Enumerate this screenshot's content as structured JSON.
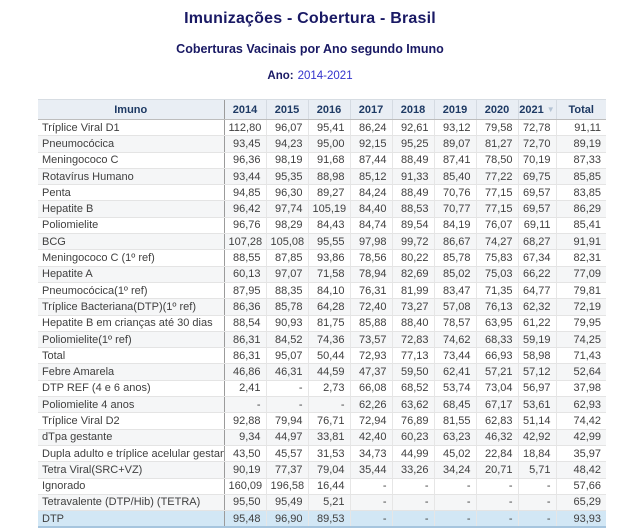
{
  "header": {
    "title": "Imunizações - Cobertura - Brasil",
    "subtitle": "Coberturas Vacinais por Ano segundo Imuno",
    "period_label": "Ano:",
    "period_value": "2014-2021"
  },
  "table_meta": {
    "sorted_column": "2021",
    "sort_direction": "desc",
    "sort_icon": "▼",
    "highlighted_row": "DTP"
  },
  "colors": {
    "title_navy": "#191964",
    "period_value_blue": "#3333cc",
    "header_bg": "#e9eef4",
    "header_text": "#1e3a64",
    "row_stripe": "#f5f6f7",
    "highlight_row_bg": "#d2e7f5",
    "table_bottom_border": "#a6c5de"
  },
  "chart_data": {
    "type": "table",
    "title": "Imunizações - Cobertura - Brasil",
    "subtitle": "Coberturas Vacinais por Ano segundo Imuno",
    "period": "Ano: 2014-2021",
    "columns": [
      "Imuno",
      "2014",
      "2015",
      "2016",
      "2017",
      "2018",
      "2019",
      "2020",
      "2021",
      "Total"
    ],
    "rows": [
      {
        "imuno": "Tríplice Viral D1",
        "values": [
          "112,80",
          "96,07",
          "95,41",
          "86,24",
          "92,61",
          "93,12",
          "79,58",
          "72,78",
          "91,11"
        ]
      },
      {
        "imuno": "Pneumocócica",
        "values": [
          "93,45",
          "94,23",
          "95,00",
          "92,15",
          "95,25",
          "89,07",
          "81,27",
          "72,70",
          "89,19"
        ]
      },
      {
        "imuno": "Meningococo C",
        "values": [
          "96,36",
          "98,19",
          "91,68",
          "87,44",
          "88,49",
          "87,41",
          "78,50",
          "70,19",
          "87,33"
        ]
      },
      {
        "imuno": "Rotavírus Humano",
        "values": [
          "93,44",
          "95,35",
          "88,98",
          "85,12",
          "91,33",
          "85,40",
          "77,22",
          "69,75",
          "85,85"
        ]
      },
      {
        "imuno": "Penta",
        "values": [
          "94,85",
          "96,30",
          "89,27",
          "84,24",
          "88,49",
          "70,76",
          "77,15",
          "69,57",
          "83,85"
        ]
      },
      {
        "imuno": "Hepatite B",
        "values": [
          "96,42",
          "97,74",
          "105,19",
          "84,40",
          "88,53",
          "70,77",
          "77,15",
          "69,57",
          "86,29"
        ]
      },
      {
        "imuno": "Poliomielite",
        "values": [
          "96,76",
          "98,29",
          "84,43",
          "84,74",
          "89,54",
          "84,19",
          "76,07",
          "69,11",
          "85,41"
        ]
      },
      {
        "imuno": "BCG",
        "values": [
          "107,28",
          "105,08",
          "95,55",
          "97,98",
          "99,72",
          "86,67",
          "74,27",
          "68,27",
          "91,91"
        ]
      },
      {
        "imuno": "Meningococo C (1º ref)",
        "values": [
          "88,55",
          "87,85",
          "93,86",
          "78,56",
          "80,22",
          "85,78",
          "75,83",
          "67,34",
          "82,31"
        ]
      },
      {
        "imuno": "Hepatite A",
        "values": [
          "60,13",
          "97,07",
          "71,58",
          "78,94",
          "82,69",
          "85,02",
          "75,03",
          "66,22",
          "77,09"
        ]
      },
      {
        "imuno": "Pneumocócica(1º ref)",
        "values": [
          "87,95",
          "88,35",
          "84,10",
          "76,31",
          "81,99",
          "83,47",
          "71,35",
          "64,77",
          "79,81"
        ]
      },
      {
        "imuno": "Tríplice Bacteriana(DTP)(1º ref)",
        "values": [
          "86,36",
          "85,78",
          "64,28",
          "72,40",
          "73,27",
          "57,08",
          "76,13",
          "62,32",
          "72,19"
        ]
      },
      {
        "imuno": "Hepatite B em crianças até 30 dias",
        "values": [
          "88,54",
          "90,93",
          "81,75",
          "85,88",
          "88,40",
          "78,57",
          "63,95",
          "61,22",
          "79,95"
        ]
      },
      {
        "imuno": "Poliomielite(1º ref)",
        "values": [
          "86,31",
          "84,52",
          "74,36",
          "73,57",
          "72,83",
          "74,62",
          "68,33",
          "59,19",
          "74,25"
        ]
      },
      {
        "imuno": "Total",
        "values": [
          "86,31",
          "95,07",
          "50,44",
          "72,93",
          "77,13",
          "73,44",
          "66,93",
          "58,98",
          "71,43"
        ]
      },
      {
        "imuno": "Febre Amarela",
        "values": [
          "46,86",
          "46,31",
          "44,59",
          "47,37",
          "59,50",
          "62,41",
          "57,21",
          "57,12",
          "52,64"
        ]
      },
      {
        "imuno": "DTP REF (4 e 6 anos)",
        "values": [
          "2,41",
          "-",
          "2,73",
          "66,08",
          "68,52",
          "53,74",
          "73,04",
          "56,97",
          "37,98"
        ]
      },
      {
        "imuno": "Poliomielite 4 anos",
        "values": [
          "-",
          "-",
          "-",
          "62,26",
          "63,62",
          "68,45",
          "67,17",
          "53,61",
          "62,93"
        ]
      },
      {
        "imuno": "Tríplice Viral D2",
        "values": [
          "92,88",
          "79,94",
          "76,71",
          "72,94",
          "76,89",
          "81,55",
          "62,83",
          "51,14",
          "74,42"
        ]
      },
      {
        "imuno": "dTpa gestante",
        "values": [
          "9,34",
          "44,97",
          "33,81",
          "42,40",
          "60,23",
          "63,23",
          "46,32",
          "42,92",
          "42,99"
        ]
      },
      {
        "imuno": "Dupla adulto e tríplice acelular gestante",
        "values": [
          "43,50",
          "45,57",
          "31,53",
          "34,73",
          "44,99",
          "45,02",
          "22,84",
          "18,84",
          "35,97"
        ]
      },
      {
        "imuno": "Tetra Viral(SRC+VZ)",
        "values": [
          "90,19",
          "77,37",
          "79,04",
          "35,44",
          "33,26",
          "34,24",
          "20,71",
          "5,71",
          "48,42"
        ]
      },
      {
        "imuno": "Ignorado",
        "values": [
          "160,09",
          "196,58",
          "16,44",
          "-",
          "-",
          "-",
          "-",
          "-",
          "57,66"
        ]
      },
      {
        "imuno": "Tetravalente (DTP/Hib) (TETRA)",
        "values": [
          "95,50",
          "95,49",
          "5,21",
          "-",
          "-",
          "-",
          "-",
          "-",
          "65,29"
        ]
      },
      {
        "imuno": "DTP",
        "values": [
          "95,48",
          "96,90",
          "89,53",
          "-",
          "-",
          "-",
          "-",
          "-",
          "93,93"
        ]
      }
    ]
  }
}
